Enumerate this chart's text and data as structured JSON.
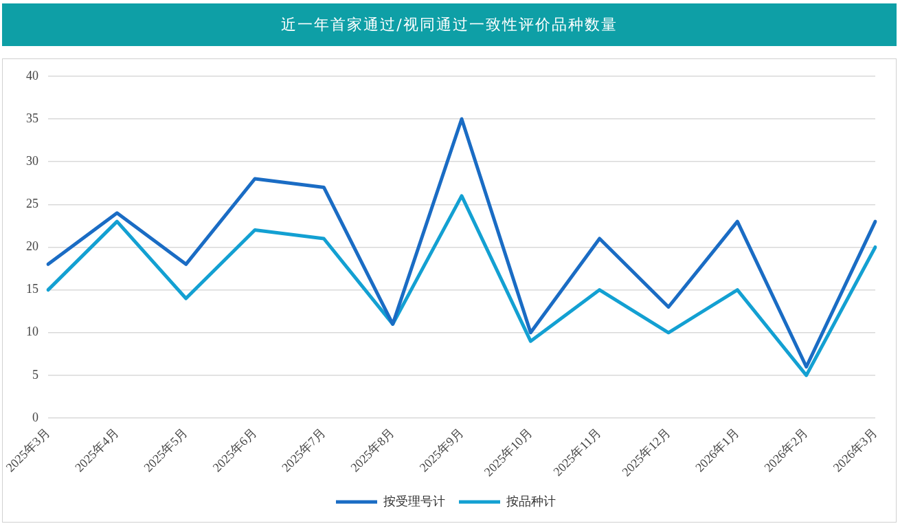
{
  "chart_data": {
    "type": "line",
    "title": "近一年首家通过/视同通过一致性评价品种数量",
    "categories": [
      "2025年3月",
      "2025年4月",
      "2025年5月",
      "2025年6月",
      "2025年7月",
      "2025年8月",
      "2025年9月",
      "2025年10月",
      "2025年11月",
      "2025年12月",
      "2026年1月",
      "2026年2月",
      "2026年3月"
    ],
    "series": [
      {
        "name": "按受理号计",
        "color": "#1a6cc4",
        "values": [
          18,
          24,
          18,
          28,
          27,
          11,
          35,
          10,
          21,
          13,
          23,
          6,
          23
        ]
      },
      {
        "name": "按品种计",
        "color": "#13a0d2",
        "values": [
          15,
          23,
          14,
          22,
          21,
          11,
          26,
          9,
          15,
          10,
          15,
          5,
          20
        ]
      }
    ],
    "ylim": [
      0,
      40
    ],
    "yticks": [
      0,
      5,
      10,
      15,
      20,
      25,
      30,
      35,
      40
    ],
    "grid": "y",
    "legend": "bottom",
    "marker": "none",
    "line_style": "solid"
  }
}
